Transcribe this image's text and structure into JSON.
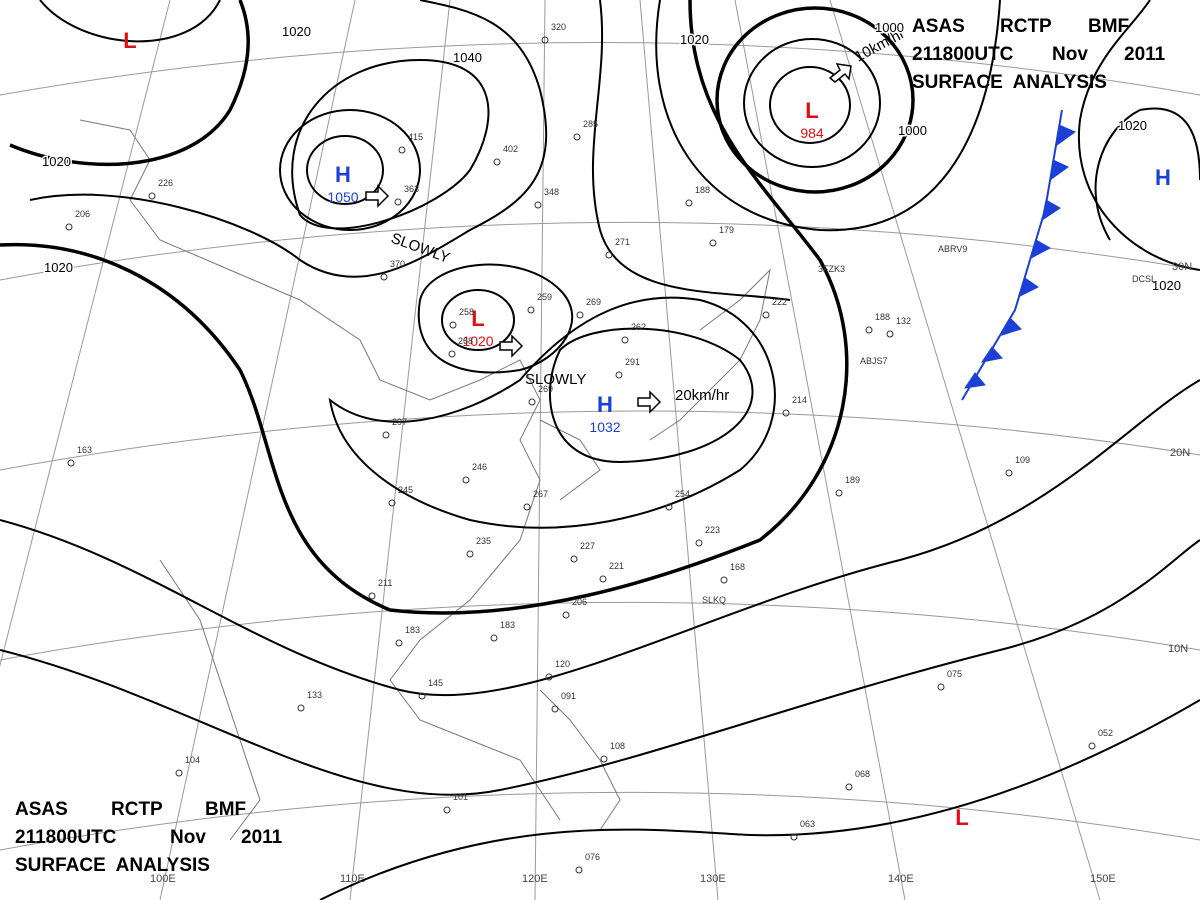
{
  "header_top": {
    "row1": [
      "ASAS",
      "RCTP",
      "BMF"
    ],
    "row2": [
      "211800UTC",
      "Nov",
      "2011"
    ],
    "row3": "SURFACE  ANALYSIS"
  },
  "header_bottom": {
    "row1": [
      "ASAS",
      "RCTP",
      "BMF"
    ],
    "row2": [
      "211800UTC",
      "Nov",
      "2011"
    ],
    "row3": "SURFACE  ANALYSIS"
  },
  "pressure_centers": [
    {
      "symbol": "L",
      "color": "#e01010"
    },
    {
      "symbol": "H",
      "value": "1050",
      "color": "#1c3fd8"
    },
    {
      "symbol": "L",
      "value": "1020",
      "color": "#e01010"
    },
    {
      "symbol": "H",
      "value": "1032",
      "color": "#1c3fd8"
    },
    {
      "symbol": "L",
      "value": "984",
      "color": "#e01010"
    },
    {
      "symbol": "H",
      "color": "#1c3fd8"
    },
    {
      "symbol": "L",
      "color": "#e01010"
    }
  ],
  "movements": [
    "SLOWLY",
    "SLOWLY",
    "20km/hr",
    "10km/hr"
  ],
  "isobar_labels": [
    "1020",
    "1040",
    "1020",
    "1020",
    "1020",
    "1000",
    "1000",
    "1020",
    "1020"
  ],
  "latitudes": [
    "30N",
    "20N",
    "10N"
  ],
  "longitudes": [
    "100E",
    "110E",
    "120E",
    "130E",
    "140E",
    "150E"
  ],
  "station_pressures": [
    "297",
    "245",
    "246",
    "267",
    "235",
    "211",
    "183",
    "183",
    "145",
    "133",
    "104",
    "101",
    "076",
    "063",
    "068",
    "052",
    "075",
    "109",
    "189",
    "168",
    "223",
    "254",
    "227",
    "221",
    "206",
    "120",
    "091",
    "108",
    "259",
    "269",
    "262",
    "291",
    "269",
    "214",
    "222",
    "188",
    "132",
    "188",
    "179",
    "402",
    "285",
    "320",
    "348",
    "415",
    "363",
    "370",
    "258",
    "268",
    "226",
    "206",
    "163",
    "271"
  ],
  "station_ids": [
    "SLKQ",
    "ABJS7",
    "3FZK3",
    "ABRV9",
    "DCSL"
  ]
}
